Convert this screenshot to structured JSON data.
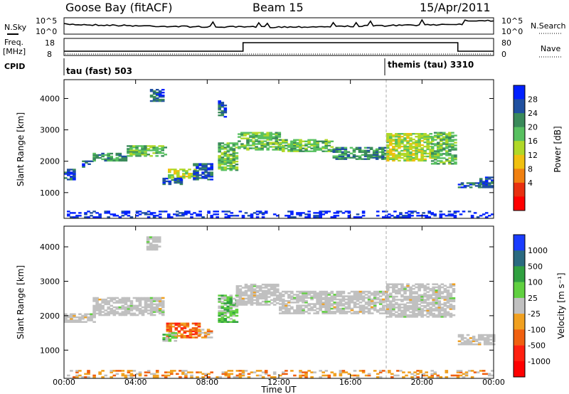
{
  "header": {
    "station": "Goose Bay (fitACF)",
    "beam": "Beam 15",
    "date": "15/Apr/2011"
  },
  "status_panel": {
    "nsky_label": "N.Sky",
    "nsky_ticks": [
      "10^5",
      "10^0"
    ],
    "nsearch_label": "N.Search",
    "nsearch_ticks": [
      "10^5",
      "10^0"
    ],
    "freq_label": "Freq.",
    "freq_unit": "[MHz]",
    "freq_ticks": [
      "18",
      "8"
    ],
    "nave_label": "Nave",
    "nave_ticks": [
      "80",
      "0"
    ],
    "cpid_label": "CPID",
    "cpid_segments": [
      {
        "label": "tau (fast) 503",
        "start_hour": 0,
        "end_hour": 18
      },
      {
        "label": "themis (tau) 3310",
        "start_hour": 18,
        "end_hour": 24
      }
    ],
    "frequency_steps": [
      {
        "start_hour": 0,
        "end_hour": 10,
        "mhz": 10.5
      },
      {
        "start_hour": 10,
        "end_hour": 22,
        "mhz": 15.5
      },
      {
        "start_hour": 22,
        "end_hour": 24,
        "mhz": 10.5
      }
    ]
  },
  "x_axis": {
    "label": "Time UT",
    "ticks": [
      "00:00",
      "04:00",
      "08:00",
      "12:00",
      "16:00",
      "20:00",
      "00:00"
    ]
  },
  "chart_data": [
    {
      "type": "heatmap",
      "name": "power-panel",
      "ylabel": "Slant Range [km]",
      "yticks": [
        "1000",
        "2000",
        "3000",
        "4000"
      ],
      "xlim": [
        0,
        24
      ],
      "ylim": [
        180,
        4600
      ],
      "colorbar": {
        "label": "Power [dB]",
        "ticks": [
          "28",
          "24",
          "20",
          "16",
          "12",
          "8",
          "4"
        ],
        "colors": [
          "#0020ff",
          "#2050a0",
          "#3a8a5a",
          "#58c060",
          "#b0d828",
          "#f0c010",
          "#f08010",
          "#e83010",
          "#ff0000"
        ]
      },
      "regions": [
        {
          "t0": 0.0,
          "t1": 0.6,
          "r0": 1400,
          "r1": 1750,
          "level": 1
        },
        {
          "t0": 1.0,
          "t1": 1.6,
          "r0": 1800,
          "r1": 2000,
          "level": 1
        },
        {
          "t0": 1.6,
          "t1": 3.5,
          "r0": 2000,
          "r1": 2250,
          "level": 2
        },
        {
          "t0": 3.5,
          "t1": 5.6,
          "r0": 2150,
          "r1": 2500,
          "level": 3
        },
        {
          "t0": 4.8,
          "t1": 5.5,
          "r0": 3900,
          "r1": 4300,
          "level": 1
        },
        {
          "t0": 5.5,
          "t1": 6.5,
          "r0": 1250,
          "r1": 1500,
          "level": 1
        },
        {
          "t0": 5.8,
          "t1": 7.3,
          "r0": 1450,
          "r1": 1750,
          "level": 4
        },
        {
          "t0": 7.2,
          "t1": 8.3,
          "r0": 1400,
          "r1": 1900,
          "level": 1
        },
        {
          "t0": 8.6,
          "t1": 9.7,
          "r0": 1700,
          "r1": 2600,
          "level": 3
        },
        {
          "t0": 8.6,
          "t1": 9.0,
          "r0": 3400,
          "r1": 3900,
          "level": 1
        },
        {
          "t0": 9.7,
          "t1": 12.0,
          "r0": 2350,
          "r1": 2900,
          "level": 3
        },
        {
          "t0": 12.0,
          "t1": 15.0,
          "r0": 2300,
          "r1": 2700,
          "level": 3
        },
        {
          "t0": 15.0,
          "t1": 18.0,
          "r0": 2050,
          "r1": 2450,
          "level": 2
        },
        {
          "t0": 18.0,
          "t1": 20.5,
          "r0": 2000,
          "r1": 2900,
          "level": 4
        },
        {
          "t0": 20.5,
          "t1": 21.8,
          "r0": 1900,
          "r1": 2900,
          "level": 3
        },
        {
          "t0": 22.0,
          "t1": 23.2,
          "r0": 1150,
          "r1": 1300,
          "level": 1
        },
        {
          "t0": 23.2,
          "t1": 24.0,
          "r0": 1150,
          "r1": 1500,
          "level": 1
        },
        {
          "t0": 0.0,
          "t1": 24.0,
          "r0": 200,
          "r1": 400,
          "level": 0
        }
      ]
    },
    {
      "type": "heatmap",
      "name": "velocity-panel",
      "ylabel": "Slant Range [km]",
      "yticks": [
        "1000",
        "2000",
        "3000",
        "4000"
      ],
      "xlim": [
        0,
        24
      ],
      "ylim": [
        180,
        4600
      ],
      "colorbar": {
        "label": "Velocity [m s^-1]",
        "ticks": [
          "1000",
          "500",
          "100",
          "25",
          "-25",
          "-100",
          "-500",
          "-1000"
        ],
        "colors": [
          "#1a3cff",
          "#2a6a80",
          "#30a040",
          "#60d040",
          "#c0c0c0",
          "#f0a020",
          "#f06010",
          "#ff2010",
          "#ff0000"
        ]
      },
      "regions": [
        {
          "t0": 0.0,
          "t1": 1.6,
          "r0": 1800,
          "r1": 2050,
          "level": 4
        },
        {
          "t0": 1.6,
          "t1": 5.6,
          "r0": 2000,
          "r1": 2500,
          "level": 4
        },
        {
          "t0": 4.6,
          "t1": 5.4,
          "r0": 3900,
          "r1": 4300,
          "level": 4
        },
        {
          "t0": 5.7,
          "t1": 7.5,
          "r0": 1350,
          "r1": 1800,
          "level": 6
        },
        {
          "t0": 5.5,
          "t1": 6.2,
          "r0": 1250,
          "r1": 1500,
          "level": 3
        },
        {
          "t0": 7.5,
          "t1": 8.2,
          "r0": 1350,
          "r1": 1600,
          "level": 5
        },
        {
          "t0": 8.6,
          "t1": 9.6,
          "r0": 1800,
          "r1": 2600,
          "level": 3
        },
        {
          "t0": 9.6,
          "t1": 12.0,
          "r0": 2300,
          "r1": 2900,
          "level": 4
        },
        {
          "t0": 12.0,
          "t1": 18.0,
          "r0": 2050,
          "r1": 2700,
          "level": 4
        },
        {
          "t0": 18.0,
          "t1": 21.8,
          "r0": 1950,
          "r1": 2900,
          "level": 4
        },
        {
          "t0": 22.0,
          "t1": 24.0,
          "r0": 1150,
          "r1": 1450,
          "level": 4
        },
        {
          "t0": 0.0,
          "t1": 24.0,
          "r0": 200,
          "r1": 400,
          "level": 5
        }
      ]
    }
  ]
}
